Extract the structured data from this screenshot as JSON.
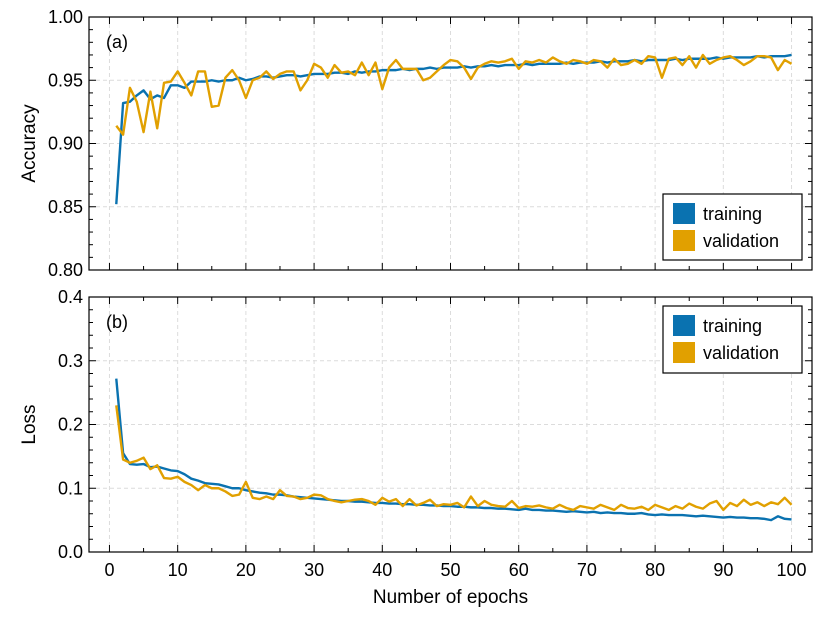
{
  "chart_data": [
    {
      "type": "line",
      "panel_label": "(a)",
      "ylabel": "Accuracy",
      "xlabel": "",
      "xlim": [
        -3,
        103
      ],
      "ylim": [
        0.8,
        1.0
      ],
      "xticks": [
        0,
        10,
        20,
        30,
        40,
        50,
        60,
        70,
        80,
        90,
        100
      ],
      "xtick_labels": [
        "0",
        "10",
        "20",
        "30",
        "40",
        "50",
        "60",
        "70",
        "80",
        "90",
        "100"
      ],
      "yticks": [
        0.8,
        0.85,
        0.9,
        0.95,
        1.0
      ],
      "ytick_labels": [
        "0.80",
        "0.85",
        "0.90",
        "0.95",
        "1.00"
      ],
      "grid": true,
      "legend_position": "bottom-right",
      "series": [
        {
          "name": "training",
          "color": "#0a72b0",
          "x": [
            1,
            2,
            3,
            4,
            5,
            6,
            7,
            8,
            9,
            10,
            11,
            12,
            13,
            14,
            15,
            16,
            17,
            18,
            19,
            20,
            21,
            22,
            23,
            24,
            25,
            26,
            27,
            28,
            29,
            30,
            31,
            32,
            33,
            34,
            35,
            36,
            37,
            38,
            39,
            40,
            41,
            42,
            43,
            44,
            45,
            46,
            47,
            48,
            49,
            50,
            51,
            52,
            53,
            54,
            55,
            56,
            57,
            58,
            59,
            60,
            61,
            62,
            63,
            64,
            65,
            66,
            67,
            68,
            69,
            70,
            71,
            72,
            73,
            74,
            75,
            76,
            77,
            78,
            79,
            80,
            81,
            82,
            83,
            84,
            85,
            86,
            87,
            88,
            89,
            90,
            91,
            92,
            93,
            94,
            95,
            96,
            97,
            98,
            99,
            100
          ],
          "y": [
            0.852,
            0.932,
            0.933,
            0.938,
            0.942,
            0.935,
            0.938,
            0.936,
            0.946,
            0.946,
            0.944,
            0.949,
            0.949,
            0.949,
            0.95,
            0.949,
            0.95,
            0.95,
            0.952,
            0.95,
            0.951,
            0.953,
            0.953,
            0.952,
            0.953,
            0.954,
            0.954,
            0.953,
            0.954,
            0.955,
            0.955,
            0.955,
            0.956,
            0.956,
            0.955,
            0.957,
            0.956,
            0.957,
            0.957,
            0.958,
            0.958,
            0.958,
            0.959,
            0.958,
            0.959,
            0.959,
            0.96,
            0.959,
            0.96,
            0.96,
            0.96,
            0.961,
            0.96,
            0.961,
            0.961,
            0.962,
            0.961,
            0.962,
            0.962,
            0.962,
            0.963,
            0.962,
            0.963,
            0.963,
            0.963,
            0.963,
            0.964,
            0.963,
            0.964,
            0.964,
            0.964,
            0.965,
            0.964,
            0.965,
            0.965,
            0.965,
            0.966,
            0.965,
            0.966,
            0.966,
            0.966,
            0.966,
            0.967,
            0.966,
            0.967,
            0.967,
            0.967,
            0.967,
            0.968,
            0.967,
            0.968,
            0.968,
            0.968,
            0.968,
            0.969,
            0.968,
            0.969,
            0.969,
            0.969,
            0.97
          ]
        },
        {
          "name": "validation",
          "color": "#e1a000",
          "x": [
            1,
            2,
            3,
            4,
            5,
            6,
            7,
            8,
            9,
            10,
            11,
            12,
            13,
            14,
            15,
            16,
            17,
            18,
            19,
            20,
            21,
            22,
            23,
            24,
            25,
            26,
            27,
            28,
            29,
            30,
            31,
            32,
            33,
            34,
            35,
            36,
            37,
            38,
            39,
            40,
            41,
            42,
            43,
            44,
            45,
            46,
            47,
            48,
            49,
            50,
            51,
            52,
            53,
            54,
            55,
            56,
            57,
            58,
            59,
            60,
            61,
            62,
            63,
            64,
            65,
            66,
            67,
            68,
            69,
            70,
            71,
            72,
            73,
            74,
            75,
            76,
            77,
            78,
            79,
            80,
            81,
            82,
            83,
            84,
            85,
            86,
            87,
            88,
            89,
            90,
            91,
            92,
            93,
            94,
            95,
            96,
            97,
            98,
            99,
            100
          ],
          "y": [
            0.914,
            0.907,
            0.944,
            0.933,
            0.909,
            0.941,
            0.912,
            0.948,
            0.949,
            0.957,
            0.948,
            0.938,
            0.957,
            0.957,
            0.929,
            0.93,
            0.952,
            0.958,
            0.95,
            0.936,
            0.95,
            0.952,
            0.957,
            0.951,
            0.955,
            0.957,
            0.957,
            0.942,
            0.95,
            0.963,
            0.96,
            0.952,
            0.962,
            0.956,
            0.957,
            0.954,
            0.964,
            0.954,
            0.964,
            0.943,
            0.96,
            0.966,
            0.959,
            0.959,
            0.959,
            0.95,
            0.952,
            0.957,
            0.962,
            0.966,
            0.965,
            0.96,
            0.951,
            0.96,
            0.963,
            0.965,
            0.964,
            0.965,
            0.967,
            0.959,
            0.965,
            0.964,
            0.966,
            0.964,
            0.968,
            0.965,
            0.963,
            0.966,
            0.965,
            0.963,
            0.966,
            0.965,
            0.96,
            0.967,
            0.962,
            0.963,
            0.966,
            0.963,
            0.969,
            0.968,
            0.952,
            0.967,
            0.968,
            0.962,
            0.969,
            0.96,
            0.97,
            0.963,
            0.966,
            0.968,
            0.969,
            0.966,
            0.962,
            0.965,
            0.969,
            0.969,
            0.968,
            0.958,
            0.966,
            0.963
          ]
        }
      ]
    },
    {
      "type": "line",
      "panel_label": "(b)",
      "ylabel": "Loss",
      "xlabel": "Number of epochs",
      "xlim": [
        -3,
        103
      ],
      "ylim": [
        0.0,
        0.4
      ],
      "xticks": [
        0,
        10,
        20,
        30,
        40,
        50,
        60,
        70,
        80,
        90,
        100
      ],
      "xtick_labels": [
        "0",
        "10",
        "20",
        "30",
        "40",
        "50",
        "60",
        "70",
        "80",
        "90",
        "100"
      ],
      "yticks": [
        0.0,
        0.1,
        0.2,
        0.3,
        0.4
      ],
      "ytick_labels": [
        "0.0",
        "0.1",
        "0.2",
        "0.3",
        "0.4"
      ],
      "grid": true,
      "legend_position": "top-right",
      "series": [
        {
          "name": "training",
          "color": "#0a72b0",
          "x": [
            1,
            2,
            3,
            4,
            5,
            6,
            7,
            8,
            9,
            10,
            11,
            12,
            13,
            14,
            15,
            16,
            17,
            18,
            19,
            20,
            21,
            22,
            23,
            24,
            25,
            26,
            27,
            28,
            29,
            30,
            31,
            32,
            33,
            34,
            35,
            36,
            37,
            38,
            39,
            40,
            41,
            42,
            43,
            44,
            45,
            46,
            47,
            48,
            49,
            50,
            51,
            52,
            53,
            54,
            55,
            56,
            57,
            58,
            59,
            60,
            61,
            62,
            63,
            64,
            65,
            66,
            67,
            68,
            69,
            70,
            71,
            72,
            73,
            74,
            75,
            76,
            77,
            78,
            79,
            80,
            81,
            82,
            83,
            84,
            85,
            86,
            87,
            88,
            89,
            90,
            91,
            92,
            93,
            94,
            95,
            96,
            97,
            98,
            99,
            100
          ],
          "y": [
            0.272,
            0.155,
            0.138,
            0.137,
            0.138,
            0.133,
            0.134,
            0.131,
            0.128,
            0.127,
            0.122,
            0.115,
            0.112,
            0.108,
            0.107,
            0.106,
            0.103,
            0.1,
            0.1,
            0.097,
            0.095,
            0.093,
            0.092,
            0.09,
            0.09,
            0.089,
            0.087,
            0.086,
            0.085,
            0.084,
            0.083,
            0.082,
            0.081,
            0.08,
            0.08,
            0.079,
            0.079,
            0.078,
            0.077,
            0.077,
            0.076,
            0.076,
            0.075,
            0.075,
            0.074,
            0.074,
            0.073,
            0.073,
            0.072,
            0.072,
            0.071,
            0.071,
            0.07,
            0.07,
            0.069,
            0.069,
            0.068,
            0.068,
            0.067,
            0.066,
            0.068,
            0.066,
            0.066,
            0.065,
            0.065,
            0.064,
            0.063,
            0.064,
            0.063,
            0.062,
            0.063,
            0.061,
            0.062,
            0.061,
            0.061,
            0.06,
            0.06,
            0.061,
            0.059,
            0.058,
            0.059,
            0.058,
            0.058,
            0.058,
            0.057,
            0.056,
            0.057,
            0.056,
            0.055,
            0.054,
            0.055,
            0.054,
            0.054,
            0.053,
            0.053,
            0.052,
            0.05,
            0.056,
            0.052,
            0.051
          ]
        },
        {
          "name": "validation",
          "color": "#e1a000",
          "x": [
            1,
            2,
            3,
            4,
            5,
            6,
            7,
            8,
            9,
            10,
            11,
            12,
            13,
            14,
            15,
            16,
            17,
            18,
            19,
            20,
            21,
            22,
            23,
            24,
            25,
            26,
            27,
            28,
            29,
            30,
            31,
            32,
            33,
            34,
            35,
            36,
            37,
            38,
            39,
            40,
            41,
            42,
            43,
            44,
            45,
            46,
            47,
            48,
            49,
            50,
            51,
            52,
            53,
            54,
            55,
            56,
            57,
            58,
            59,
            60,
            61,
            62,
            63,
            64,
            65,
            66,
            67,
            68,
            69,
            70,
            71,
            72,
            73,
            74,
            75,
            76,
            77,
            78,
            79,
            80,
            81,
            82,
            83,
            84,
            85,
            86,
            87,
            88,
            89,
            90,
            91,
            92,
            93,
            94,
            95,
            96,
            97,
            98,
            99,
            100
          ],
          "y": [
            0.23,
            0.145,
            0.14,
            0.143,
            0.148,
            0.13,
            0.136,
            0.116,
            0.115,
            0.118,
            0.11,
            0.105,
            0.097,
            0.105,
            0.1,
            0.1,
            0.095,
            0.088,
            0.09,
            0.11,
            0.085,
            0.083,
            0.087,
            0.083,
            0.097,
            0.088,
            0.087,
            0.083,
            0.085,
            0.09,
            0.089,
            0.083,
            0.08,
            0.078,
            0.08,
            0.082,
            0.083,
            0.08,
            0.074,
            0.085,
            0.079,
            0.083,
            0.072,
            0.083,
            0.073,
            0.077,
            0.082,
            0.072,
            0.075,
            0.074,
            0.077,
            0.07,
            0.087,
            0.072,
            0.08,
            0.074,
            0.072,
            0.071,
            0.08,
            0.069,
            0.072,
            0.071,
            0.073,
            0.07,
            0.068,
            0.074,
            0.069,
            0.066,
            0.072,
            0.07,
            0.068,
            0.074,
            0.07,
            0.066,
            0.074,
            0.069,
            0.068,
            0.071,
            0.066,
            0.074,
            0.07,
            0.066,
            0.072,
            0.068,
            0.076,
            0.071,
            0.068,
            0.076,
            0.08,
            0.066,
            0.077,
            0.072,
            0.082,
            0.074,
            0.078,
            0.072,
            0.078,
            0.075,
            0.085,
            0.074
          ]
        }
      ]
    }
  ]
}
